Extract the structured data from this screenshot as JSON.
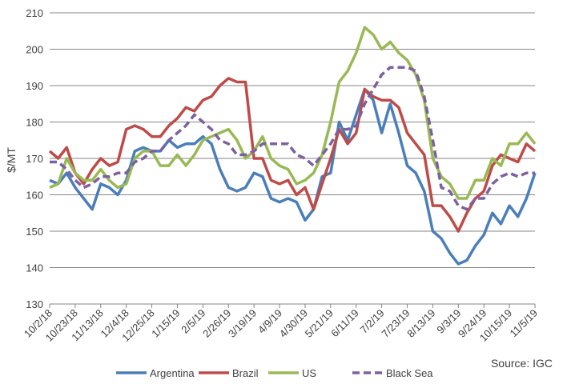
{
  "chart_data": {
    "type": "line",
    "title": "",
    "ylabel": "$/MT",
    "xlabel": "",
    "ylim": [
      130,
      210
    ],
    "yticks": [
      130,
      140,
      150,
      160,
      170,
      180,
      190,
      200,
      210
    ],
    "grid": true,
    "x_unit": "days since 10/2/18",
    "xlim": [
      0,
      399
    ],
    "xtick_labels": [
      "10/2/18",
      "10/23/18",
      "11/13/18",
      "12/4/18",
      "12/25/18",
      "1/15/19",
      "2/5/19",
      "2/26/19",
      "3/19/19",
      "4/9/19",
      "4/30/19",
      "5/21/19",
      "6/11/19",
      "7/2/19",
      "7/23/19",
      "8/13/19",
      "9/3/19",
      "9/24/19",
      "10/15/19",
      "11/5/19"
    ],
    "x": [
      0,
      7,
      14,
      21,
      28,
      35,
      42,
      49,
      56,
      63,
      70,
      77,
      84,
      91,
      98,
      105,
      112,
      119,
      126,
      133,
      140,
      147,
      154,
      161,
      168,
      175,
      182,
      189,
      196,
      203,
      210,
      217,
      224,
      231,
      238,
      245,
      252,
      259,
      266,
      273,
      280,
      287,
      294,
      301,
      308,
      315,
      322,
      329,
      336,
      343,
      350,
      357,
      364,
      371,
      378,
      385,
      392,
      399
    ],
    "series": [
      {
        "name": "Argentina",
        "color": "#4a7ebb",
        "dashed": false,
        "values": [
          164,
          163,
          166,
          162,
          159,
          156,
          163,
          162,
          160,
          164,
          172,
          173,
          172,
          172,
          175,
          173,
          174,
          174,
          176,
          174,
          167,
          162,
          161,
          162,
          166,
          165,
          159,
          158,
          159,
          158,
          153,
          156,
          165,
          166,
          180,
          175,
          182,
          189,
          186,
          177,
          185,
          177,
          168,
          166,
          161,
          150,
          148,
          144,
          141,
          142,
          146,
          149,
          155,
          152,
          157,
          154,
          159,
          166
        ]
      },
      {
        "name": "Brazil",
        "color": "#be4b48",
        "dashed": false,
        "values": [
          172,
          170,
          173,
          166,
          163,
          167,
          170,
          168,
          169,
          178,
          179,
          178,
          176,
          176,
          179,
          181,
          184,
          183,
          186,
          187,
          190,
          192,
          191,
          191,
          170,
          170,
          164,
          163,
          164,
          160,
          162,
          156,
          163,
          170,
          178,
          174,
          177,
          189,
          187,
          186,
          186,
          184,
          177,
          174,
          171,
          157,
          157,
          154,
          150,
          155,
          159,
          161,
          168,
          171,
          170,
          169,
          174,
          172
        ]
      },
      {
        "name": "US",
        "color": "#98b954",
        "dashed": false,
        "values": [
          162,
          163,
          170,
          166,
          164,
          164,
          167,
          164,
          162,
          163,
          170,
          172,
          172,
          168,
          168,
          171,
          168,
          171,
          175,
          176,
          177,
          178,
          175,
          170,
          172,
          176,
          170,
          168,
          167,
          163,
          164,
          166,
          171,
          180,
          191,
          194,
          199,
          206,
          204,
          200,
          202,
          199,
          197,
          193,
          186,
          170,
          165,
          163,
          159,
          159,
          164,
          164,
          170,
          168,
          174,
          174,
          177,
          174
        ]
      },
      {
        "name": "Black Sea",
        "color": "#7d60a0",
        "dashed": true,
        "values": [
          169,
          169,
          167,
          164,
          162,
          163,
          165,
          165,
          166,
          166,
          169,
          170,
          172,
          172,
          175,
          177,
          179,
          182,
          180,
          178,
          175,
          174,
          171,
          171,
          172,
          174,
          174,
          174,
          174,
          171,
          170,
          168,
          171,
          174,
          178,
          178,
          179,
          185,
          189,
          193,
          195,
          195,
          195,
          194,
          187,
          175,
          162,
          161,
          157,
          156,
          159,
          159,
          163,
          165,
          166,
          165,
          166,
          166
        ]
      }
    ],
    "legend_position": "bottom",
    "annotation": "Source: IGC"
  }
}
